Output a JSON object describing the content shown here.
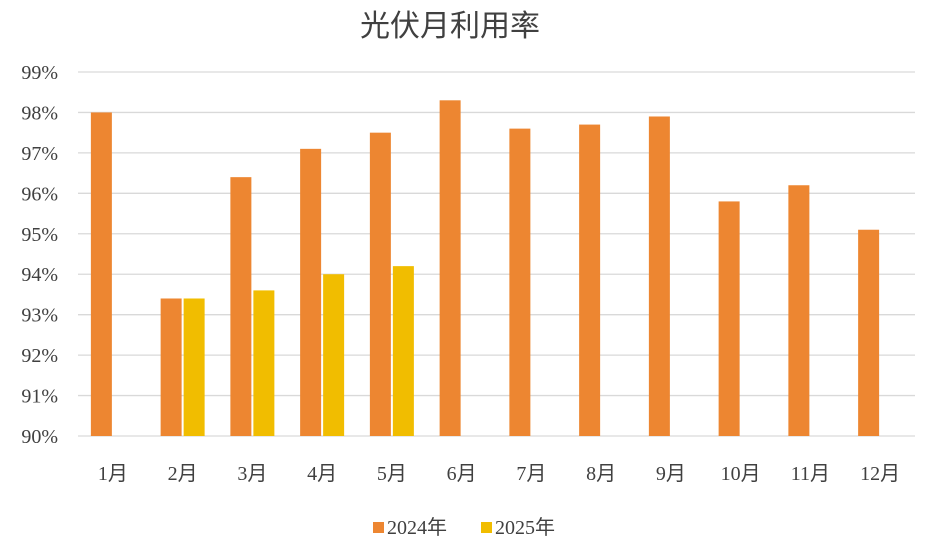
{
  "chart_data": {
    "type": "bar",
    "title": "光伏月利用率",
    "categories": [
      "1月",
      "2月",
      "3月",
      "4月",
      "5月",
      "6月",
      "7月",
      "8月",
      "9月",
      "10月",
      "11月",
      "12月"
    ],
    "ylim": [
      90,
      99
    ],
    "yticks": [
      "90%",
      "91%",
      "92%",
      "93%",
      "94%",
      "95%",
      "96%",
      "97%",
      "98%",
      "99%"
    ],
    "grid": true,
    "legend_position": "bottom",
    "series": [
      {
        "name": "2024年",
        "color": "#ed8631",
        "values": [
          98.0,
          93.4,
          96.4,
          97.1,
          97.5,
          98.3,
          97.6,
          97.7,
          97.9,
          95.8,
          96.2,
          95.1
        ]
      },
      {
        "name": "2025年",
        "color": "#f1bd00",
        "values": [
          null,
          93.4,
          93.6,
          94.0,
          94.2,
          null,
          null,
          null,
          null,
          null,
          null,
          null
        ]
      }
    ]
  }
}
